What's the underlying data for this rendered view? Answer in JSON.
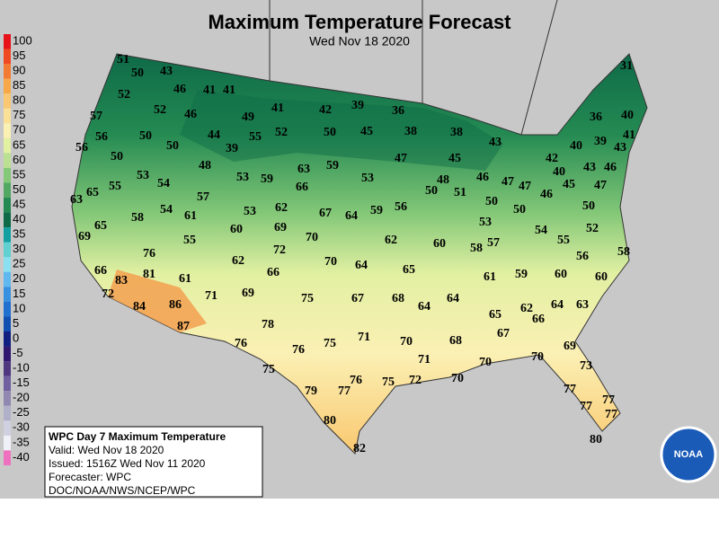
{
  "header": {
    "title": "Maximum Temperature Forecast",
    "subtitle": "Wed Nov 18 2020"
  },
  "legend": {
    "values": [
      100,
      95,
      90,
      85,
      80,
      75,
      70,
      65,
      60,
      55,
      50,
      45,
      40,
      35,
      30,
      25,
      20,
      15,
      10,
      5,
      0,
      -5,
      -10,
      -15,
      -20,
      -25,
      -30,
      -35,
      -40
    ],
    "colors": [
      "#e8121a",
      "#f04a22",
      "#f37a32",
      "#f8a848",
      "#f9c870",
      "#fbe098",
      "#fbf0b4",
      "#e2f0a2",
      "#bce092",
      "#84c878",
      "#52a862",
      "#248a52",
      "#0e6a48",
      "#14a0a0",
      "#60d0d0",
      "#88e0f0",
      "#60b8f0",
      "#3890e0",
      "#2070d0",
      "#1050b0",
      "#102080",
      "#301870",
      "#503880",
      "#7060a0",
      "#9088b0",
      "#b0b0c8",
      "#d0d0e0",
      "#f0f0f8",
      "#f070c0"
    ]
  },
  "stations": [
    51,
    50,
    43,
    46,
    41,
    41,
    52,
    52,
    46,
    49,
    41,
    42,
    39,
    36,
    31,
    57,
    56,
    50,
    50,
    44,
    39,
    55,
    52,
    50,
    45,
    38,
    38,
    43,
    36,
    40,
    40,
    39,
    41,
    56,
    50,
    48,
    53,
    59,
    63,
    59,
    53,
    47,
    45,
    42,
    43,
    53,
    54,
    66,
    48,
    51,
    46,
    47,
    47,
    40,
    43,
    46,
    45,
    46,
    47,
    63,
    65,
    55,
    57,
    50,
    50,
    50,
    50,
    58,
    54,
    61,
    53,
    62,
    67,
    64,
    59,
    56,
    53,
    52,
    65,
    69,
    60,
    69,
    70,
    62,
    60,
    58,
    57,
    54,
    55,
    58,
    76,
    55,
    72,
    62,
    70,
    64,
    65,
    56,
    66,
    81,
    83,
    61,
    66,
    61,
    59,
    60,
    60,
    72,
    71,
    69,
    75,
    67,
    68,
    64,
    64,
    84,
    86,
    62,
    66,
    64,
    63,
    65,
    87,
    78,
    71,
    67,
    75,
    76,
    70,
    68,
    76,
    69,
    71,
    70,
    70,
    75,
    73,
    72,
    75,
    76,
    77,
    70,
    79,
    77,
    77,
    77,
    77,
    80,
    82,
    80
  ],
  "info": {
    "lines": [
      "WPC Day 7 Maximum Temperature",
      "Valid: Wed Nov 18 2020",
      "Issued: 1516Z Wed Nov 11 2020",
      "Forecaster: WPC",
      "DOC/NOAA/NWS/NCEP/WPC"
    ]
  },
  "logo": {
    "text": "NOAA"
  }
}
